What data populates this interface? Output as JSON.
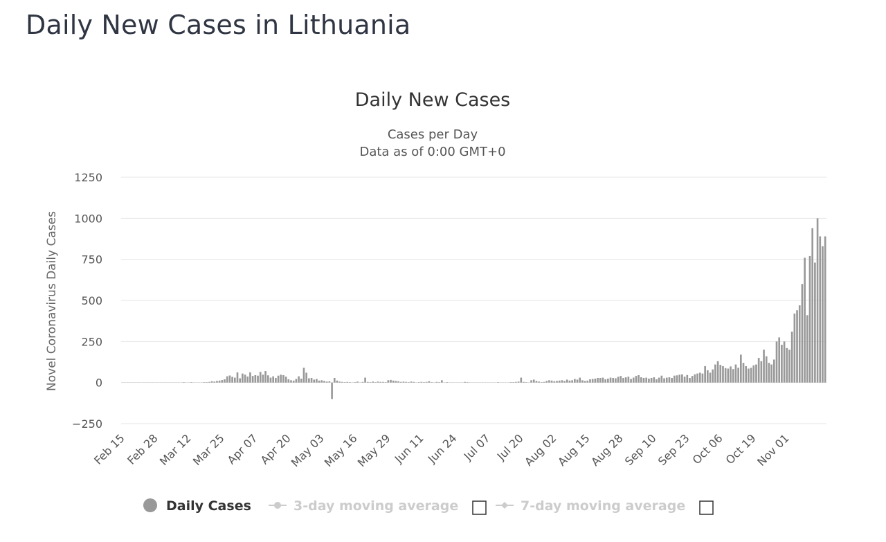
{
  "page": {
    "title": "Daily New Cases in Lithuania"
  },
  "chart_data": {
    "type": "bar",
    "title": "Daily New Cases",
    "subtitle_lines": [
      "Cases per Day",
      "Data as of 0:00 GMT+0"
    ],
    "xlabel": "",
    "ylabel": "Novel Coronavirus Daily Cases",
    "ylim": [
      -250,
      1250
    ],
    "y_ticks": [
      "1250",
      "1000",
      "750",
      "500",
      "250",
      "0",
      "−250"
    ],
    "y_tick_values": [
      1250,
      1000,
      750,
      500,
      250,
      0,
      -250
    ],
    "x_tick_labels": [
      "Feb 15",
      "Feb 28",
      "Mar 12",
      "Mar 25",
      "Apr 07",
      "Apr 20",
      "May 03",
      "May 16",
      "May 29",
      "Jun 11",
      "Jun 24",
      "Jul 07",
      "Jul 20",
      "Aug 02",
      "Aug 15",
      "Aug 28",
      "Sep 10",
      "Sep 23",
      "Oct 06",
      "Oct 19",
      "Nov 01"
    ],
    "x_start_label": "Feb 15",
    "grid": true,
    "legend_position": "bottom-center",
    "bar_color": "#999999",
    "series": [
      {
        "name": "Daily Cases",
        "values": [
          0,
          0,
          0,
          0,
          0,
          0,
          0,
          0,
          0,
          0,
          0,
          0,
          0,
          0,
          0,
          0,
          0,
          0,
          0,
          0,
          0,
          0,
          0,
          0,
          1,
          0,
          0,
          2,
          0,
          0,
          0,
          0,
          2,
          1,
          4,
          8,
          6,
          10,
          12,
          15,
          20,
          38,
          43,
          35,
          30,
          62,
          26,
          55,
          48,
          37,
          62,
          40,
          45,
          42,
          65,
          48,
          70,
          44,
          30,
          38,
          28,
          42,
          48,
          45,
          36,
          20,
          14,
          12,
          22,
          38,
          24,
          90,
          60,
          26,
          28,
          18,
          22,
          12,
          14,
          10,
          6,
          8,
          -100,
          28,
          12,
          6,
          4,
          2,
          4,
          2,
          0,
          2,
          6,
          0,
          4,
          30,
          4,
          2,
          6,
          2,
          6,
          4,
          4,
          2,
          14,
          16,
          12,
          10,
          8,
          4,
          6,
          4,
          2,
          6,
          4,
          0,
          2,
          4,
          2,
          4,
          8,
          2,
          0,
          4,
          2,
          14,
          0,
          2,
          0,
          0,
          0,
          0,
          0,
          0,
          4,
          2,
          0,
          0,
          0,
          0,
          0,
          0,
          0,
          0,
          0,
          0,
          0,
          2,
          0,
          0,
          0,
          0,
          2,
          2,
          4,
          6,
          30,
          4,
          2,
          0,
          14,
          18,
          10,
          6,
          2,
          4,
          10,
          14,
          12,
          8,
          10,
          12,
          14,
          10,
          18,
          12,
          14,
          22,
          18,
          30,
          14,
          10,
          12,
          20,
          22,
          24,
          28,
          28,
          30,
          20,
          24,
          30,
          28,
          26,
          35,
          40,
          28,
          32,
          36,
          22,
          30,
          40,
          45,
          32,
          28,
          30,
          24,
          28,
          32,
          20,
          30,
          42,
          26,
          30,
          32,
          28,
          42,
          44,
          48,
          50,
          36,
          46,
          28,
          40,
          50,
          55,
          60,
          55,
          100,
          75,
          60,
          80,
          110,
          130,
          108,
          100,
          88,
          85,
          98,
          82,
          110,
          90,
          170,
          120,
          100,
          85,
          90,
          105,
          110,
          150,
          130,
          200,
          160,
          120,
          110,
          140,
          250,
          275,
          230,
          250,
          210,
          200,
          310,
          420,
          440,
          470,
          600,
          760,
          410,
          770,
          940,
          730,
          1000,
          890,
          830,
          890
        ]
      },
      {
        "name": "3-day moving average"
      },
      {
        "name": "7-day moving average"
      }
    ]
  }
}
